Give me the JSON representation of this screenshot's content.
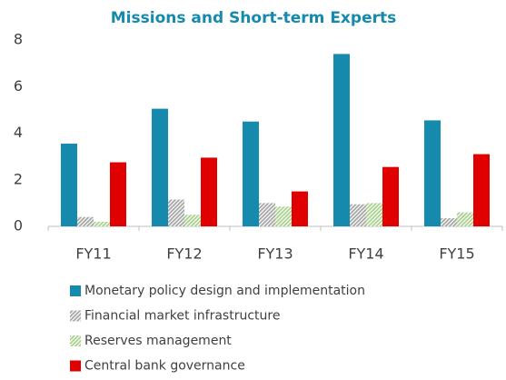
{
  "chart_data": {
    "type": "bar",
    "title": "Missions and Short-term Experts",
    "categories": [
      "FY11",
      "FY12",
      "FY13",
      "FY14",
      "FY15"
    ],
    "series": [
      {
        "name": "Monetary policy design and implementation",
        "color": "#168aad",
        "values": [
          3.55,
          5.05,
          4.5,
          7.4,
          4.55
        ]
      },
      {
        "name": "Financial market infrastructure",
        "color": "#a6a6a6",
        "hatched": true,
        "values": [
          0.4,
          1.15,
          1.0,
          0.95,
          0.35
        ]
      },
      {
        "name": "Reserves management",
        "color": "#a9d18e",
        "hatched": true,
        "values": [
          0.2,
          0.5,
          0.85,
          1.0,
          0.6
        ]
      },
      {
        "name": "Central bank governance",
        "color": "#e00000",
        "values": [
          2.75,
          2.95,
          1.5,
          2.55,
          3.1
        ]
      }
    ],
    "ylim": [
      0,
      8
    ],
    "yticks": [
      0,
      2,
      4,
      6,
      8
    ],
    "grid": false
  }
}
